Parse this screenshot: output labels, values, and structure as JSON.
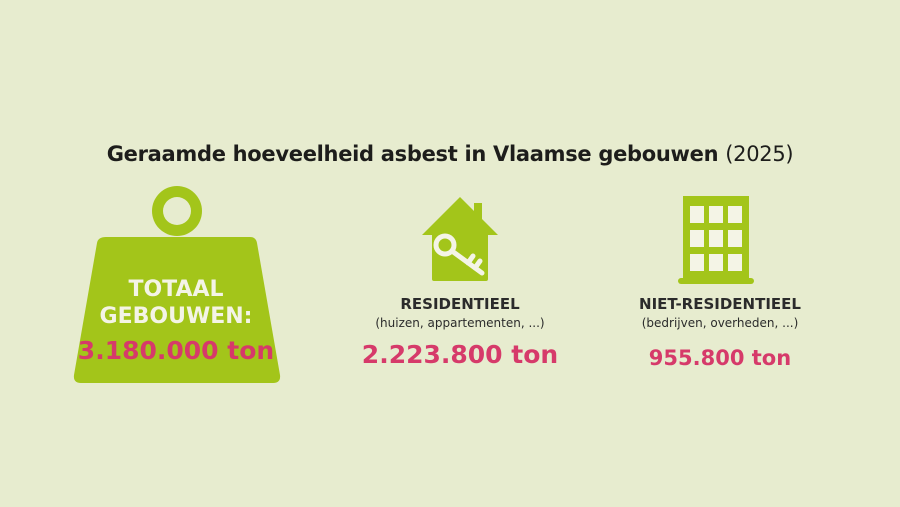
{
  "title": {
    "main": "Geraamde hoeveelheid asbest in Vlaamse gebouwen",
    "year": "(2025)"
  },
  "colors": {
    "background": "#e7eccf",
    "green": "#a3c51a",
    "pink": "#d63a6a",
    "light": "#f4f4e6"
  },
  "total": {
    "icon": "weight-icon",
    "line1": "TOTAAL",
    "line2": "GEBOUWEN:",
    "value": "3.180.000 ton"
  },
  "residential": {
    "icon": "house-key-icon",
    "label": "RESIDENTIEEL",
    "sub": "(huizen, appartementen, ...)",
    "value": "2.223.800 ton"
  },
  "nonresidential": {
    "icon": "building-icon",
    "label": "NIET-RESIDENTIEEL",
    "sub": "(bedrijven, overheden, ...)",
    "value": "955.800 ton"
  }
}
